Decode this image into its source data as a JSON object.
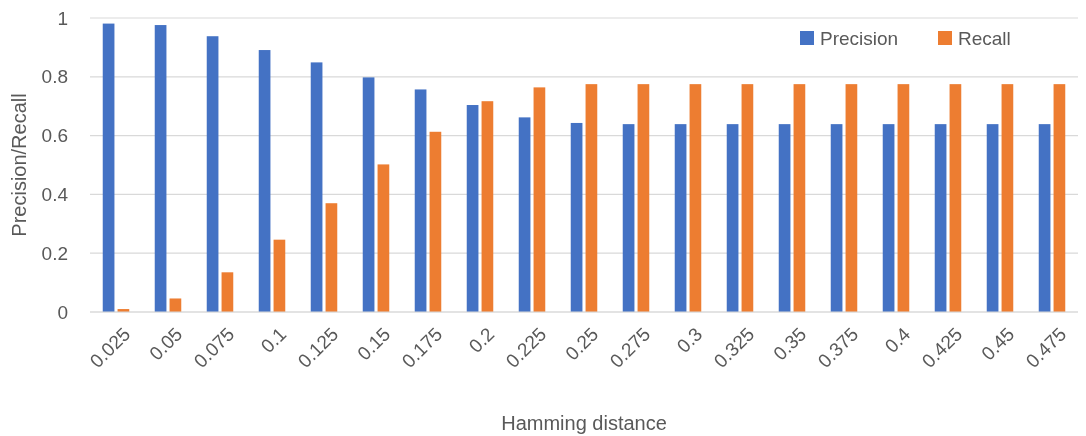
{
  "chart_data": {
    "type": "bar",
    "xlabel": "Hamming distance",
    "ylabel": "Precision/Recall",
    "categories": [
      "0.025",
      "0.05",
      "0.075",
      "0.1",
      "0.125",
      "0.15",
      "0.175",
      "0.2",
      "0.225",
      "0.25",
      "0.275",
      "0.3",
      "0.325",
      "0.35",
      "0.375",
      "0.4",
      "0.425",
      "0.45",
      "0.475"
    ],
    "series": [
      {
        "name": "Precision",
        "color": "#4472c4",
        "values": [
          0.981,
          0.976,
          0.938,
          0.891,
          0.849,
          0.798,
          0.757,
          0.704,
          0.662,
          0.643,
          0.639,
          0.639,
          0.639,
          0.639,
          0.639,
          0.639,
          0.639,
          0.639,
          0.639
        ]
      },
      {
        "name": "Recall",
        "color": "#ed7d31",
        "values": [
          0.01,
          0.046,
          0.135,
          0.246,
          0.37,
          0.502,
          0.613,
          0.717,
          0.764,
          0.775,
          0.775,
          0.775,
          0.775,
          0.775,
          0.775,
          0.775,
          0.775,
          0.775,
          0.775
        ]
      }
    ],
    "ylim": [
      0,
      1
    ],
    "yticks": [
      0,
      0.2,
      0.4,
      0.6,
      0.8,
      1
    ],
    "grid": "y",
    "legend": "top right"
  }
}
